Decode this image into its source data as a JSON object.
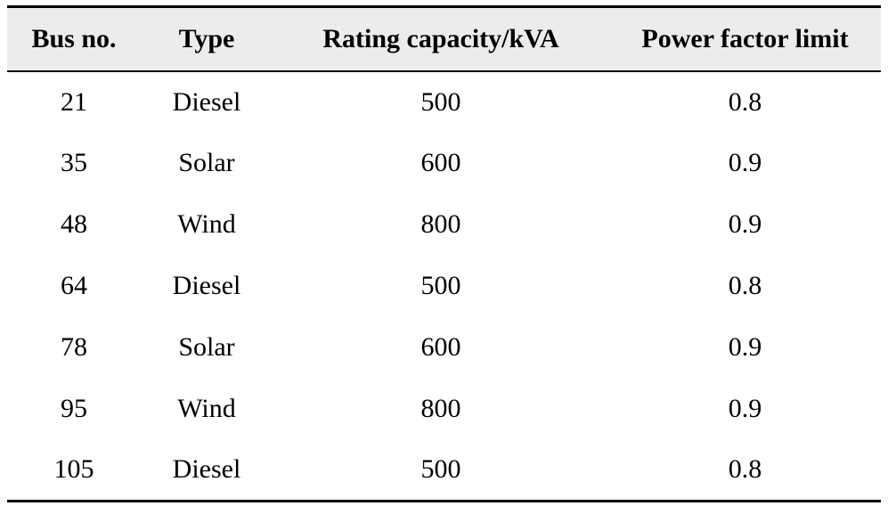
{
  "table": {
    "columns": [
      "Bus no.",
      "Type",
      "Rating capacity/kVA",
      "Power factor limit"
    ],
    "rows": [
      [
        "21",
        "Diesel",
        "500",
        "0.8"
      ],
      [
        "35",
        "Solar",
        "600",
        "0.9"
      ],
      [
        "48",
        "Wind",
        "800",
        "0.9"
      ],
      [
        "64",
        "Diesel",
        "500",
        "0.8"
      ],
      [
        "78",
        "Solar",
        "600",
        "0.9"
      ],
      [
        "95",
        "Wind",
        "800",
        "0.9"
      ],
      [
        "105",
        "Diesel",
        "500",
        "0.8"
      ]
    ]
  },
  "colors": {
    "header_background": "#ececec",
    "rule": "#000000",
    "text": "#000000"
  }
}
